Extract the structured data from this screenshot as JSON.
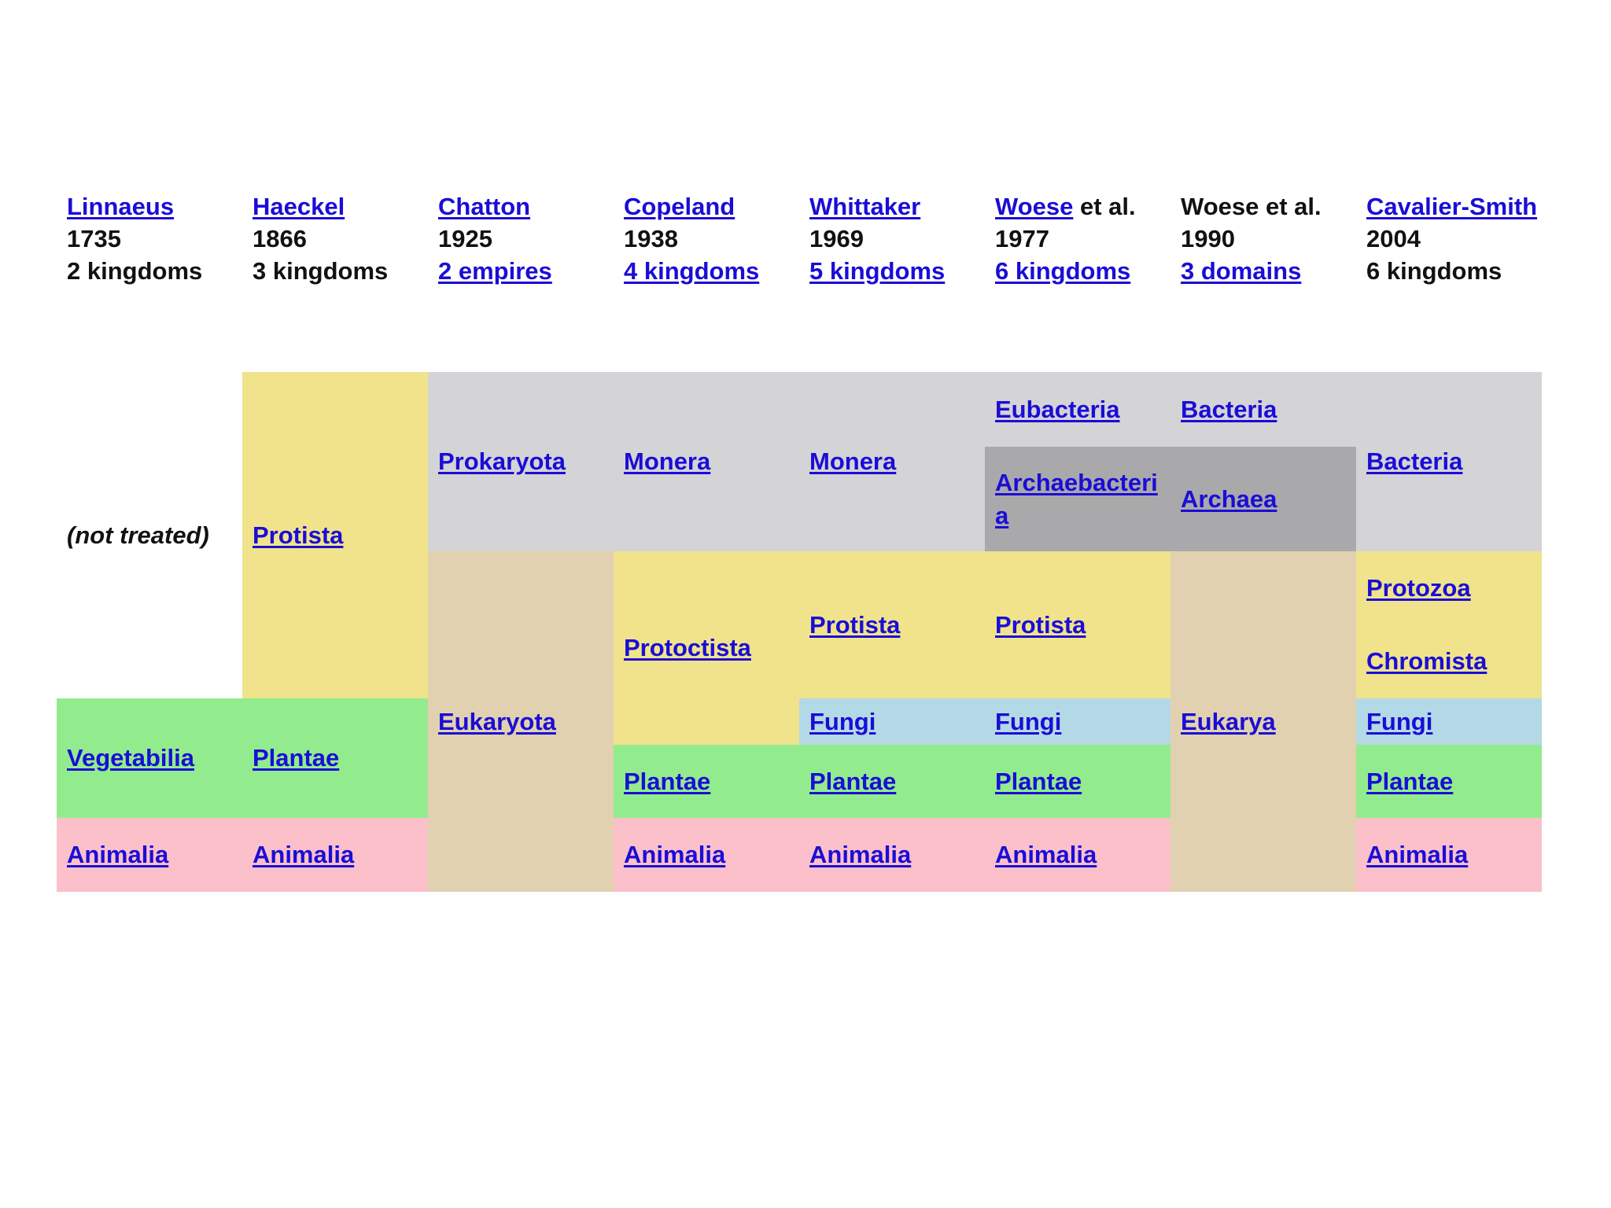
{
  "columns": [
    {
      "author": "Linnaeus",
      "author_suffix": "",
      "year": "1735",
      "count": "2 kingdoms",
      "author_link": true,
      "count_link": false
    },
    {
      "author": "Haeckel",
      "author_suffix": "",
      "year": "1866",
      "count": "3 kingdoms",
      "author_link": true,
      "count_link": false
    },
    {
      "author": "Chatton",
      "author_suffix": "",
      "year": "1925",
      "count": "2 empires",
      "author_link": true,
      "count_link": true
    },
    {
      "author": "Copeland",
      "author_suffix": "",
      "year": "1938",
      "count": "4 kingdoms",
      "author_link": true,
      "count_link": true
    },
    {
      "author": "Whittaker",
      "author_suffix": "",
      "year": "1969",
      "count": "5 kingdoms",
      "author_link": true,
      "count_link": true
    },
    {
      "author": "Woese",
      "author_suffix": " et al.",
      "year": "1977",
      "count": "6 kingdoms",
      "author_link": true,
      "count_link": true
    },
    {
      "author": "Woese et al.",
      "author_suffix": "",
      "year": "1990",
      "count": "3 domains",
      "author_link": false,
      "count_link": true
    },
    {
      "author": "Cavalier-Smith",
      "author_suffix": "",
      "year": "2004",
      "count": "6 kingdoms",
      "author_link": true,
      "count_link": false
    }
  ],
  "cells": {
    "linnaeus_not_treated": "(not treated)",
    "linnaeus_vegetabilia": "Vegetabilia",
    "linnaeus_animalia": "Animalia",
    "haeckel_protista": "Protista",
    "haeckel_plantae": "Plantae",
    "haeckel_animalia": "Animalia",
    "chatton_prokaryota": "Prokaryota",
    "chatton_eukaryota": "Eukaryota",
    "copeland_monera": "Monera",
    "copeland_protoctista": "Protoctista",
    "copeland_plantae": "Plantae",
    "copeland_animalia": "Animalia",
    "whittaker_monera": "Monera",
    "whittaker_protista": "Protista",
    "whittaker_fungi": "Fungi",
    "whittaker_plantae": "Plantae",
    "whittaker_animalia": "Animalia",
    "woese77_eubacteria": "Eubacteria",
    "woese77_archaebacteria_1": "Archaebacteri",
    "woese77_archaebacteria_2": "a",
    "woese77_protista": "Protista",
    "woese77_fungi": "Fungi",
    "woese77_plantae": "Plantae",
    "woese77_animalia": "Animalia",
    "woese90_bacteria": "Bacteria",
    "woese90_archaea": "Archaea",
    "woese90_eukarya": "Eukarya",
    "cs_bacteria": "Bacteria",
    "cs_protozoa": "Protozoa",
    "cs_chromista": "Chromista",
    "cs_fungi": "Fungi",
    "cs_plantae": "Plantae",
    "cs_animalia": "Animalia"
  },
  "colors": {
    "prokaryote_grey": "#d4d3d6",
    "archaea_dark_grey": "#a9a8ab",
    "protist_yellow": "#f0e38c",
    "eukaryote_tan": "#e2d1b0",
    "plant_green": "#92ec8e",
    "fungi_blue": "#b3d9e6",
    "animal_pink": "#fcc0cb",
    "link_blue": "#1a0dd6"
  }
}
